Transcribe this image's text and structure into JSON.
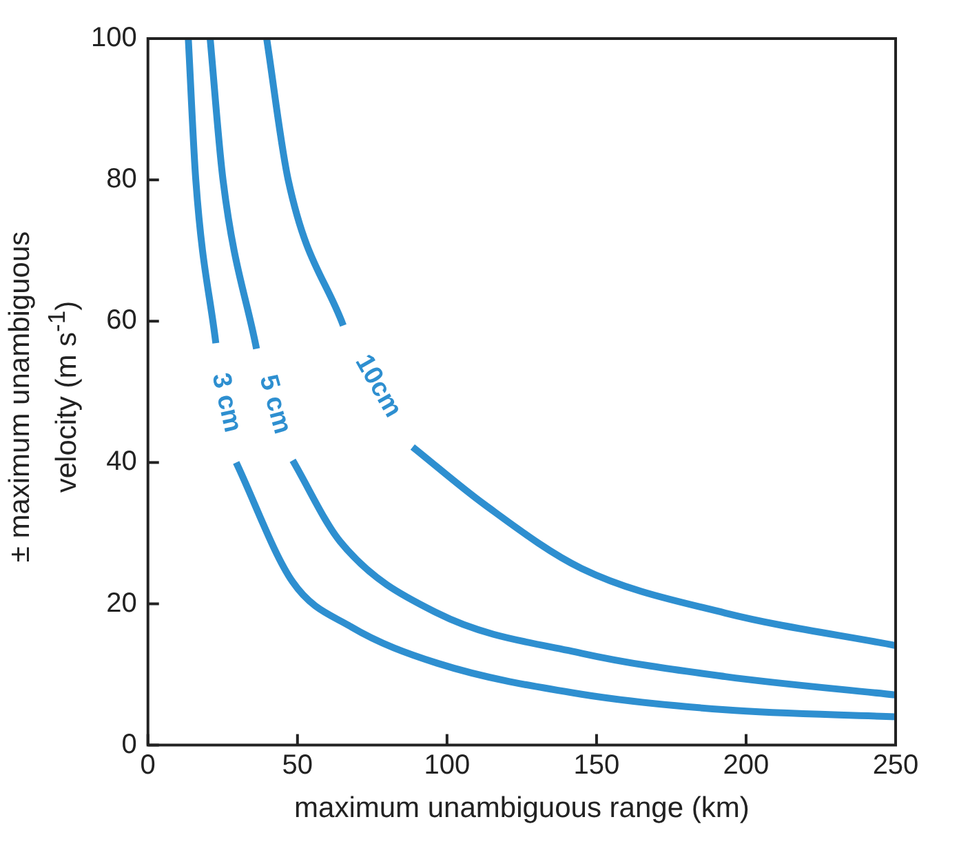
{
  "chart_data": {
    "type": "line",
    "xlabel": "maximum unambiguous range (km)",
    "ylabel": "± maximum unambiguous velocity (m s$^{-1}$)",
    "xlim": [
      0,
      250
    ],
    "ylim": [
      0,
      100
    ],
    "xticks": [
      0,
      50,
      100,
      150,
      200,
      250
    ],
    "yticks": [
      0,
      20,
      40,
      60,
      80,
      100
    ],
    "grid": false,
    "legend": false,
    "marker": "none",
    "line_style": "solid",
    "series": [
      {
        "name": "3 cm",
        "color": "#2e8fd0",
        "x": [
          13.5,
          16,
          22.7,
          null,
          29.5,
          48.4,
          67.7,
          96.7,
          145,
          193,
          250
        ],
        "values": [
          100,
          80,
          56.9,
          null,
          40,
          23.1,
          16.8,
          11.6,
          7.2,
          5.0,
          4.0
        ]
      },
      {
        "name": "5 cm",
        "color": "#2e8fd0",
        "x": [
          20.8,
          25.1,
          36.3,
          null,
          48.4,
          64.3,
          96.7,
          145,
          193,
          250
        ],
        "values": [
          100,
          80,
          56.1,
          null,
          40.3,
          28.8,
          18.7,
          13.0,
          9.7,
          7.1
        ]
      },
      {
        "name": "10cm",
        "color": "#2e8fd0",
        "x": [
          39.7,
          46.9,
          65.3,
          null,
          88.5,
          112.7,
          145,
          193,
          250
        ],
        "values": [
          100,
          80,
          59.4,
          null,
          42.2,
          34.0,
          25.0,
          18.7,
          14.1
        ]
      }
    ]
  }
}
